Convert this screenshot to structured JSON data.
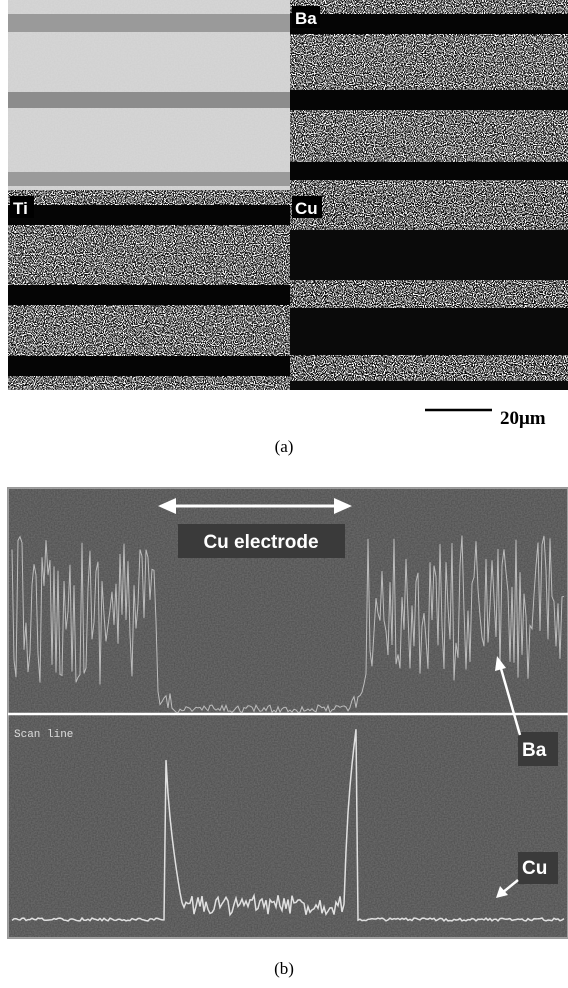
{
  "panel_a": {
    "maps": {
      "ba": "Ba",
      "ti": "Ti",
      "cu": "Cu"
    },
    "scale_bar": "20μm",
    "caption": "(a)"
  },
  "panel_b": {
    "electrode_label": "Cu electrode",
    "scan_line_label": "Scan line",
    "ba_label": "Ba",
    "cu_label": "Cu",
    "caption": "(b)"
  }
}
